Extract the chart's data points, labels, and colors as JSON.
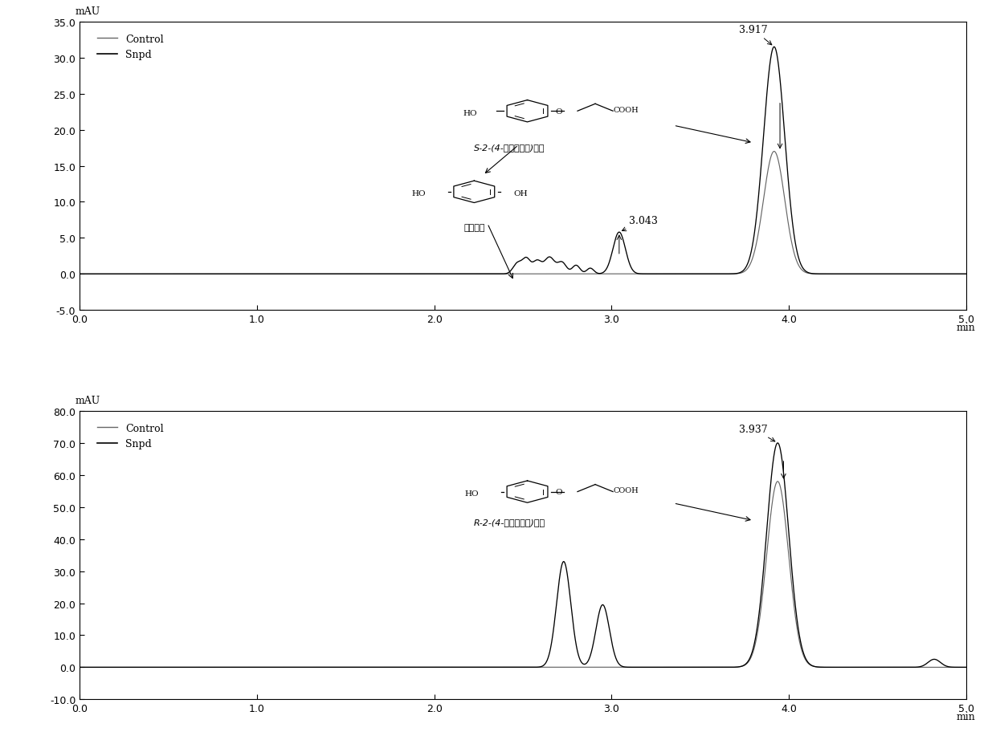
{
  "plot1": {
    "ylim": [
      -5.0,
      35.0
    ],
    "yticks": [
      -5.0,
      0.0,
      5.0,
      10.0,
      15.0,
      20.0,
      25.0,
      30.0,
      35.0
    ],
    "xlim": [
      0.0,
      5.0
    ],
    "xticks": [
      0.0,
      1.0,
      2.0,
      3.0,
      4.0,
      5.0
    ],
    "ylabel": "mAU",
    "xlabel": "min",
    "peak1_label": "3.917",
    "peak2_label": "3.043",
    "struct_label1": "S-2-(4-羟基苯氧基)丙酸",
    "struct_label2": "对苯二酚"
  },
  "plot2": {
    "ylim": [
      -10.0,
      80.0
    ],
    "yticks": [
      -10.0,
      0.0,
      10.0,
      20.0,
      30.0,
      40.0,
      50.0,
      60.0,
      70.0,
      80.0
    ],
    "xlim": [
      0.0,
      5.0
    ],
    "xticks": [
      0.0,
      1.0,
      2.0,
      3.0,
      4.0,
      5.0
    ],
    "ylabel": "mAU",
    "xlabel": "min",
    "peak1_label": "3.937",
    "struct_label": "R-2-(4-羟基苯氧基)丙酸"
  },
  "background_color": "#ffffff",
  "fontsize_label": 9,
  "fontsize_tick": 9,
  "fontsize_annotation": 9,
  "fontsize_struct": 8
}
